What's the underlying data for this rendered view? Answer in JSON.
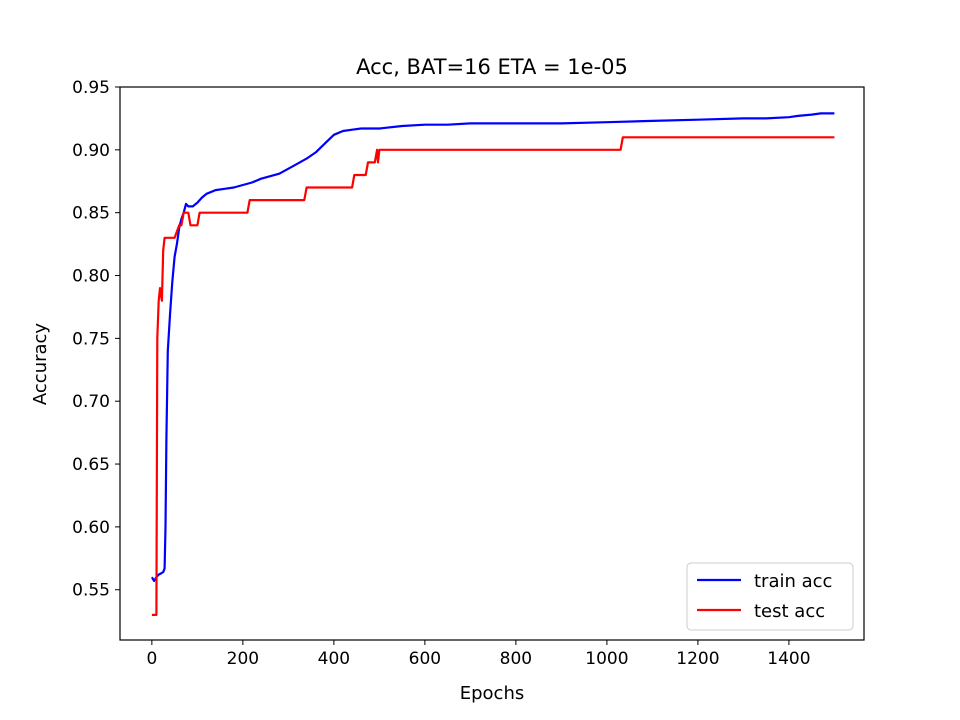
{
  "chart_data": {
    "type": "line",
    "title": "Acc, BAT=16 ETA = 1e-05",
    "xlabel": "Epochs",
    "ylabel": "Accuracy",
    "xlim": [
      -70,
      1565
    ],
    "ylim": [
      0.51,
      0.95
    ],
    "xticks": [
      0,
      200,
      400,
      600,
      800,
      1000,
      1200,
      1400
    ],
    "yticks": [
      0.55,
      0.6,
      0.65,
      0.7,
      0.75,
      0.8,
      0.85,
      0.9,
      0.95
    ],
    "ytick_labels": [
      "0.55",
      "0.60",
      "0.65",
      "0.70",
      "0.75",
      "0.80",
      "0.85",
      "0.90",
      "0.95"
    ],
    "legend_position": "lower right",
    "grid": false,
    "series": [
      {
        "name": "train acc",
        "color": "#0000ff",
        "x": [
          0,
          5,
          10,
          15,
          20,
          25,
          28,
          30,
          32,
          35,
          40,
          45,
          50,
          55,
          60,
          65,
          70,
          75,
          80,
          90,
          100,
          110,
          120,
          140,
          160,
          180,
          200,
          220,
          240,
          260,
          280,
          300,
          320,
          340,
          360,
          380,
          400,
          420,
          440,
          460,
          480,
          500,
          550,
          600,
          650,
          700,
          800,
          900,
          1000,
          1100,
          1200,
          1300,
          1350,
          1400,
          1420,
          1450,
          1470,
          1500
        ],
        "y": [
          0.56,
          0.557,
          0.56,
          0.562,
          0.563,
          0.564,
          0.567,
          0.6,
          0.67,
          0.74,
          0.77,
          0.795,
          0.815,
          0.825,
          0.838,
          0.845,
          0.85,
          0.857,
          0.855,
          0.855,
          0.858,
          0.862,
          0.865,
          0.868,
          0.869,
          0.87,
          0.872,
          0.874,
          0.877,
          0.879,
          0.881,
          0.885,
          0.889,
          0.893,
          0.898,
          0.905,
          0.912,
          0.915,
          0.916,
          0.917,
          0.917,
          0.917,
          0.919,
          0.92,
          0.92,
          0.921,
          0.921,
          0.921,
          0.922,
          0.923,
          0.924,
          0.925,
          0.925,
          0.926,
          0.927,
          0.928,
          0.929,
          0.929
        ]
      },
      {
        "name": "test acc",
        "color": "#ff0000",
        "x": [
          0,
          10,
          12,
          15,
          18,
          22,
          25,
          28,
          30,
          40,
          50,
          60,
          65,
          70,
          80,
          85,
          90,
          100,
          105,
          150,
          210,
          215,
          300,
          335,
          340,
          400,
          440,
          445,
          460,
          470,
          475,
          490,
          495,
          497,
          500,
          505,
          600,
          800,
          1000,
          1030,
          1035,
          1200,
          1400,
          1500
        ],
        "y": [
          0.53,
          0.53,
          0.75,
          0.78,
          0.79,
          0.78,
          0.82,
          0.83,
          0.83,
          0.83,
          0.83,
          0.84,
          0.84,
          0.85,
          0.85,
          0.84,
          0.84,
          0.84,
          0.85,
          0.85,
          0.85,
          0.86,
          0.86,
          0.86,
          0.87,
          0.87,
          0.87,
          0.88,
          0.88,
          0.88,
          0.89,
          0.89,
          0.9,
          0.89,
          0.9,
          0.9,
          0.9,
          0.9,
          0.9,
          0.9,
          0.91,
          0.91,
          0.91,
          0.91
        ]
      }
    ]
  }
}
